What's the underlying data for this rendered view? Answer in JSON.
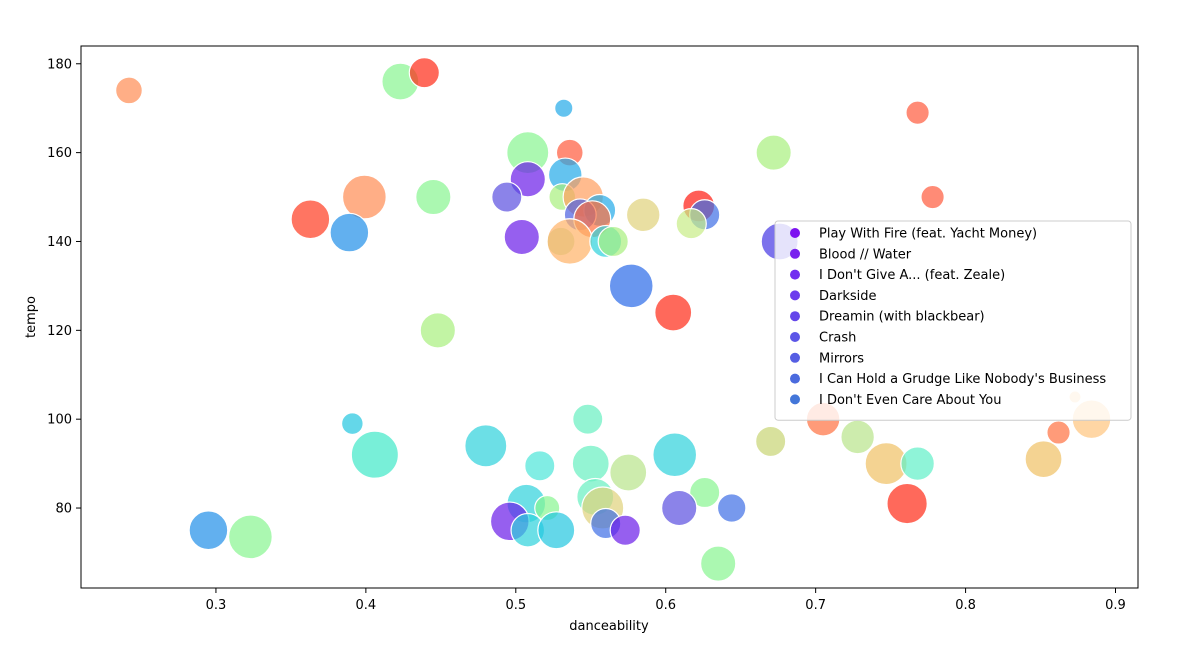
{
  "chart_data": {
    "type": "scatter",
    "title": "",
    "xlabel": "danceability",
    "ylabel": "tempo",
    "xlim": [
      0.21,
      0.915
    ],
    "ylim": [
      62,
      184
    ],
    "xticks": [
      0.3,
      0.4,
      0.5,
      0.6,
      0.7,
      0.8,
      0.9
    ],
    "xtick_labels": [
      "0.3",
      "0.4",
      "0.5",
      "0.6",
      "0.7",
      "0.8",
      "0.9"
    ],
    "yticks": [
      80,
      100,
      120,
      140,
      160,
      180
    ],
    "ytick_labels": [
      "80",
      "100",
      "120",
      "140",
      "160",
      "180"
    ],
    "grid": false,
    "legend": {
      "placement": "center-right",
      "entries": [
        {
          "label": "Play With Fire (feat. Yacht Money)",
          "color": "#7d13f0"
        },
        {
          "label": "Blood // Water",
          "color": "#7922ee"
        },
        {
          "label": "I Don't Give A... (feat. Zeale)",
          "color": "#722ff0"
        },
        {
          "label": "Darkside",
          "color": "#6c3ced"
        },
        {
          "label": "Dreamin (with blackbear)",
          "color": "#6446ea"
        },
        {
          "label": "Crash",
          "color": "#5b55e7"
        },
        {
          "label": "Mirrors",
          "color": "#555ee3"
        },
        {
          "label": "I Can Hold a Grudge Like Nobody's Business",
          "color": "#4b6bde"
        },
        {
          "label": "I Don't Even Care About You",
          "color": "#4376d9"
        }
      ]
    },
    "points": [
      {
        "x": 0.242,
        "y": 174,
        "s": 0.55,
        "c": "#ff8c52"
      },
      {
        "x": 0.423,
        "y": 176,
        "s": 0.85,
        "c": "#88f590"
      },
      {
        "x": 0.439,
        "y": 178,
        "s": 0.65,
        "c": "#ff2a16"
      },
      {
        "x": 0.532,
        "y": 170,
        "s": 0.3,
        "c": "#22a9e8"
      },
      {
        "x": 0.768,
        "y": 169,
        "s": 0.45,
        "c": "#ff5a3c"
      },
      {
        "x": 0.508,
        "y": 160,
        "s": 1.0,
        "c": "#88f590"
      },
      {
        "x": 0.536,
        "y": 160,
        "s": 0.55,
        "c": "#ff5a3c"
      },
      {
        "x": 0.672,
        "y": 160,
        "s": 0.8,
        "c": "#a8f07e"
      },
      {
        "x": 0.508,
        "y": 154,
        "s": 0.8,
        "c": "#6a1be8"
      },
      {
        "x": 0.533,
        "y": 155,
        "s": 0.75,
        "c": "#22a9e8"
      },
      {
        "x": 0.531,
        "y": 150,
        "s": 0.55,
        "c": "#a8f07e"
      },
      {
        "x": 0.399,
        "y": 150,
        "s": 1.05,
        "c": "#ff8c52"
      },
      {
        "x": 0.445,
        "y": 150,
        "s": 0.8,
        "c": "#88f590"
      },
      {
        "x": 0.494,
        "y": 150,
        "s": 0.65,
        "c": "#5a4fe0"
      },
      {
        "x": 0.545,
        "y": 150,
        "s": 0.95,
        "c": "#ff9e5e"
      },
      {
        "x": 0.778,
        "y": 150,
        "s": 0.45,
        "c": "#ff5a3c"
      },
      {
        "x": 0.556,
        "y": 147,
        "s": 0.7,
        "c": "#22a9e8"
      },
      {
        "x": 0.622,
        "y": 148,
        "s": 0.7,
        "c": "#ff1a10"
      },
      {
        "x": 0.626,
        "y": 146,
        "s": 0.65,
        "c": "#3d6ee6"
      },
      {
        "x": 0.585,
        "y": 146,
        "s": 0.75,
        "c": "#e0d27a"
      },
      {
        "x": 0.363,
        "y": 145,
        "s": 0.9,
        "c": "#ff3b1f"
      },
      {
        "x": 0.543,
        "y": 146,
        "s": 0.7,
        "c": "#4a5ee0"
      },
      {
        "x": 0.551,
        "y": 145,
        "s": 0.85,
        "c": "#ff7040"
      },
      {
        "x": 0.617,
        "y": 144,
        "s": 0.65,
        "c": "#c8ec86"
      },
      {
        "x": 0.389,
        "y": 142,
        "s": 0.9,
        "c": "#1f8ee8"
      },
      {
        "x": 0.504,
        "y": 141,
        "s": 0.8,
        "c": "#6a1be8"
      },
      {
        "x": 0.53,
        "y": 140,
        "s": 0.6,
        "c": "#b8de9a"
      },
      {
        "x": 0.536,
        "y": 140,
        "s": 1.1,
        "c": "#ffb266"
      },
      {
        "x": 0.56,
        "y": 140,
        "s": 0.7,
        "c": "#2ed2dc"
      },
      {
        "x": 0.565,
        "y": 140,
        "s": 0.65,
        "c": "#a8f07e"
      },
      {
        "x": 0.676,
        "y": 140,
        "s": 0.85,
        "c": "#4436e4"
      },
      {
        "x": 0.577,
        "y": 130,
        "s": 1.05,
        "c": "#2a6ae8"
      },
      {
        "x": 0.605,
        "y": 124,
        "s": 0.85,
        "c": "#ff2a16"
      },
      {
        "x": 0.448,
        "y": 120,
        "s": 0.8,
        "c": "#a8f07e"
      },
      {
        "x": 0.873,
        "y": 105,
        "s": 0.12,
        "c": "#ffcf8a"
      },
      {
        "x": 0.391,
        "y": 99,
        "s": 0.4,
        "c": "#22c6e0"
      },
      {
        "x": 0.548,
        "y": 100,
        "s": 0.65,
        "c": "#66f0c0"
      },
      {
        "x": 0.705,
        "y": 100,
        "s": 0.75,
        "c": "#ff7040"
      },
      {
        "x": 0.884,
        "y": 100,
        "s": 0.9,
        "c": "#ffc47e"
      },
      {
        "x": 0.862,
        "y": 97,
        "s": 0.45,
        "c": "#ff7040"
      },
      {
        "x": 0.48,
        "y": 94,
        "s": 1.0,
        "c": "#2ed2dc"
      },
      {
        "x": 0.406,
        "y": 92,
        "s": 1.15,
        "c": "#3fe8c8"
      },
      {
        "x": 0.606,
        "y": 92,
        "s": 1.05,
        "c": "#2ed2dc"
      },
      {
        "x": 0.67,
        "y": 95,
        "s": 0.65,
        "c": "#c8d474"
      },
      {
        "x": 0.728,
        "y": 96,
        "s": 0.75,
        "c": "#b8e48a"
      },
      {
        "x": 0.516,
        "y": 89.5,
        "s": 0.65,
        "c": "#4ce6d8"
      },
      {
        "x": 0.55,
        "y": 90,
        "s": 0.85,
        "c": "#66f0c0"
      },
      {
        "x": 0.575,
        "y": 88,
        "s": 0.85,
        "c": "#b8e48a"
      },
      {
        "x": 0.747,
        "y": 90,
        "s": 1.0,
        "c": "#f0c064"
      },
      {
        "x": 0.768,
        "y": 90,
        "s": 0.75,
        "c": "#5ff0c8"
      },
      {
        "x": 0.852,
        "y": 91,
        "s": 0.85,
        "c": "#f0c064"
      },
      {
        "x": 0.626,
        "y": 83.5,
        "s": 0.65,
        "c": "#88f590"
      },
      {
        "x": 0.553,
        "y": 82.5,
        "s": 0.85,
        "c": "#66f0c0"
      },
      {
        "x": 0.507,
        "y": 81,
        "s": 0.9,
        "c": "#2ed2dc"
      },
      {
        "x": 0.521,
        "y": 80,
        "s": 0.5,
        "c": "#88f590"
      },
      {
        "x": 0.558,
        "y": 80,
        "s": 1.0,
        "c": "#e0d27a"
      },
      {
        "x": 0.609,
        "y": 80,
        "s": 0.8,
        "c": "#5a4fe0"
      },
      {
        "x": 0.644,
        "y": 80,
        "s": 0.6,
        "c": "#3d6ee6"
      },
      {
        "x": 0.761,
        "y": 81,
        "s": 0.95,
        "c": "#ff2a16"
      },
      {
        "x": 0.496,
        "y": 77,
        "s": 0.9,
        "c": "#6a1be8"
      },
      {
        "x": 0.508,
        "y": 75,
        "s": 0.75,
        "c": "#2ed2dc"
      },
      {
        "x": 0.527,
        "y": 75,
        "s": 0.85,
        "c": "#22c6e0"
      },
      {
        "x": 0.56,
        "y": 76.5,
        "s": 0.65,
        "c": "#3d6ee6"
      },
      {
        "x": 0.573,
        "y": 75,
        "s": 0.65,
        "c": "#6a1be8"
      },
      {
        "x": 0.295,
        "y": 75,
        "s": 0.9,
        "c": "#1f8ee8"
      },
      {
        "x": 0.323,
        "y": 73.5,
        "s": 1.05,
        "c": "#88f590"
      },
      {
        "x": 0.635,
        "y": 67.5,
        "s": 0.8,
        "c": "#88f590"
      }
    ]
  }
}
